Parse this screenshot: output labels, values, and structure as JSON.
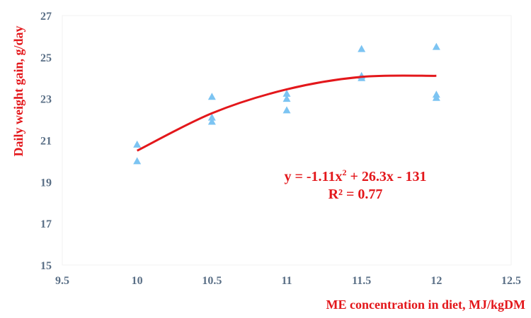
{
  "chart_data": {
    "type": "scatter",
    "xlabel": "ME concentration in diet, MJ/kgDM",
    "ylabel": "Daily weight gain, g/day",
    "xlim": [
      9.5,
      12.5
    ],
    "ylim": [
      15,
      27
    ],
    "x_ticks": [
      9.5,
      10,
      10.5,
      11,
      11.5,
      12,
      12.5
    ],
    "y_ticks": [
      15,
      17,
      19,
      21,
      23,
      25,
      27
    ],
    "grid": false,
    "colors": {
      "points": "#7cc4f2",
      "trendline": "#e3171b",
      "text": "#e3171b",
      "ticks": "#5a6f86"
    },
    "points": [
      {
        "x": 10,
        "y": 20.8
      },
      {
        "x": 10,
        "y": 20.0
      },
      {
        "x": 10.5,
        "y": 23.1
      },
      {
        "x": 10.5,
        "y": 22.1
      },
      {
        "x": 10.5,
        "y": 21.9
      },
      {
        "x": 11,
        "y": 23.25
      },
      {
        "x": 11,
        "y": 23.0
      },
      {
        "x": 11,
        "y": 22.45
      },
      {
        "x": 11.5,
        "y": 25.4
      },
      {
        "x": 11.5,
        "y": 24.1
      },
      {
        "x": 11.5,
        "y": 24.0
      },
      {
        "x": 12,
        "y": 25.5
      },
      {
        "x": 12,
        "y": 23.2
      },
      {
        "x": 12,
        "y": 23.05
      }
    ],
    "trendline": {
      "type": "polynomial",
      "coefficients": [
        -1.11,
        26.3,
        -131
      ],
      "x_range": [
        10,
        12
      ],
      "curve_points": [
        {
          "x": 10.0,
          "y": 20.5
        },
        {
          "x": 10.5,
          "y": 22.3
        },
        {
          "x": 11.0,
          "y": 23.45
        },
        {
          "x": 11.5,
          "y": 24.05
        },
        {
          "x": 12.0,
          "y": 24.1
        }
      ]
    },
    "equation": {
      "line1_main": "y = -1.11x",
      "line1_sup": "2",
      "line1_rest": " + 26.3x - 131",
      "line2": "R² = 0.77"
    }
  }
}
